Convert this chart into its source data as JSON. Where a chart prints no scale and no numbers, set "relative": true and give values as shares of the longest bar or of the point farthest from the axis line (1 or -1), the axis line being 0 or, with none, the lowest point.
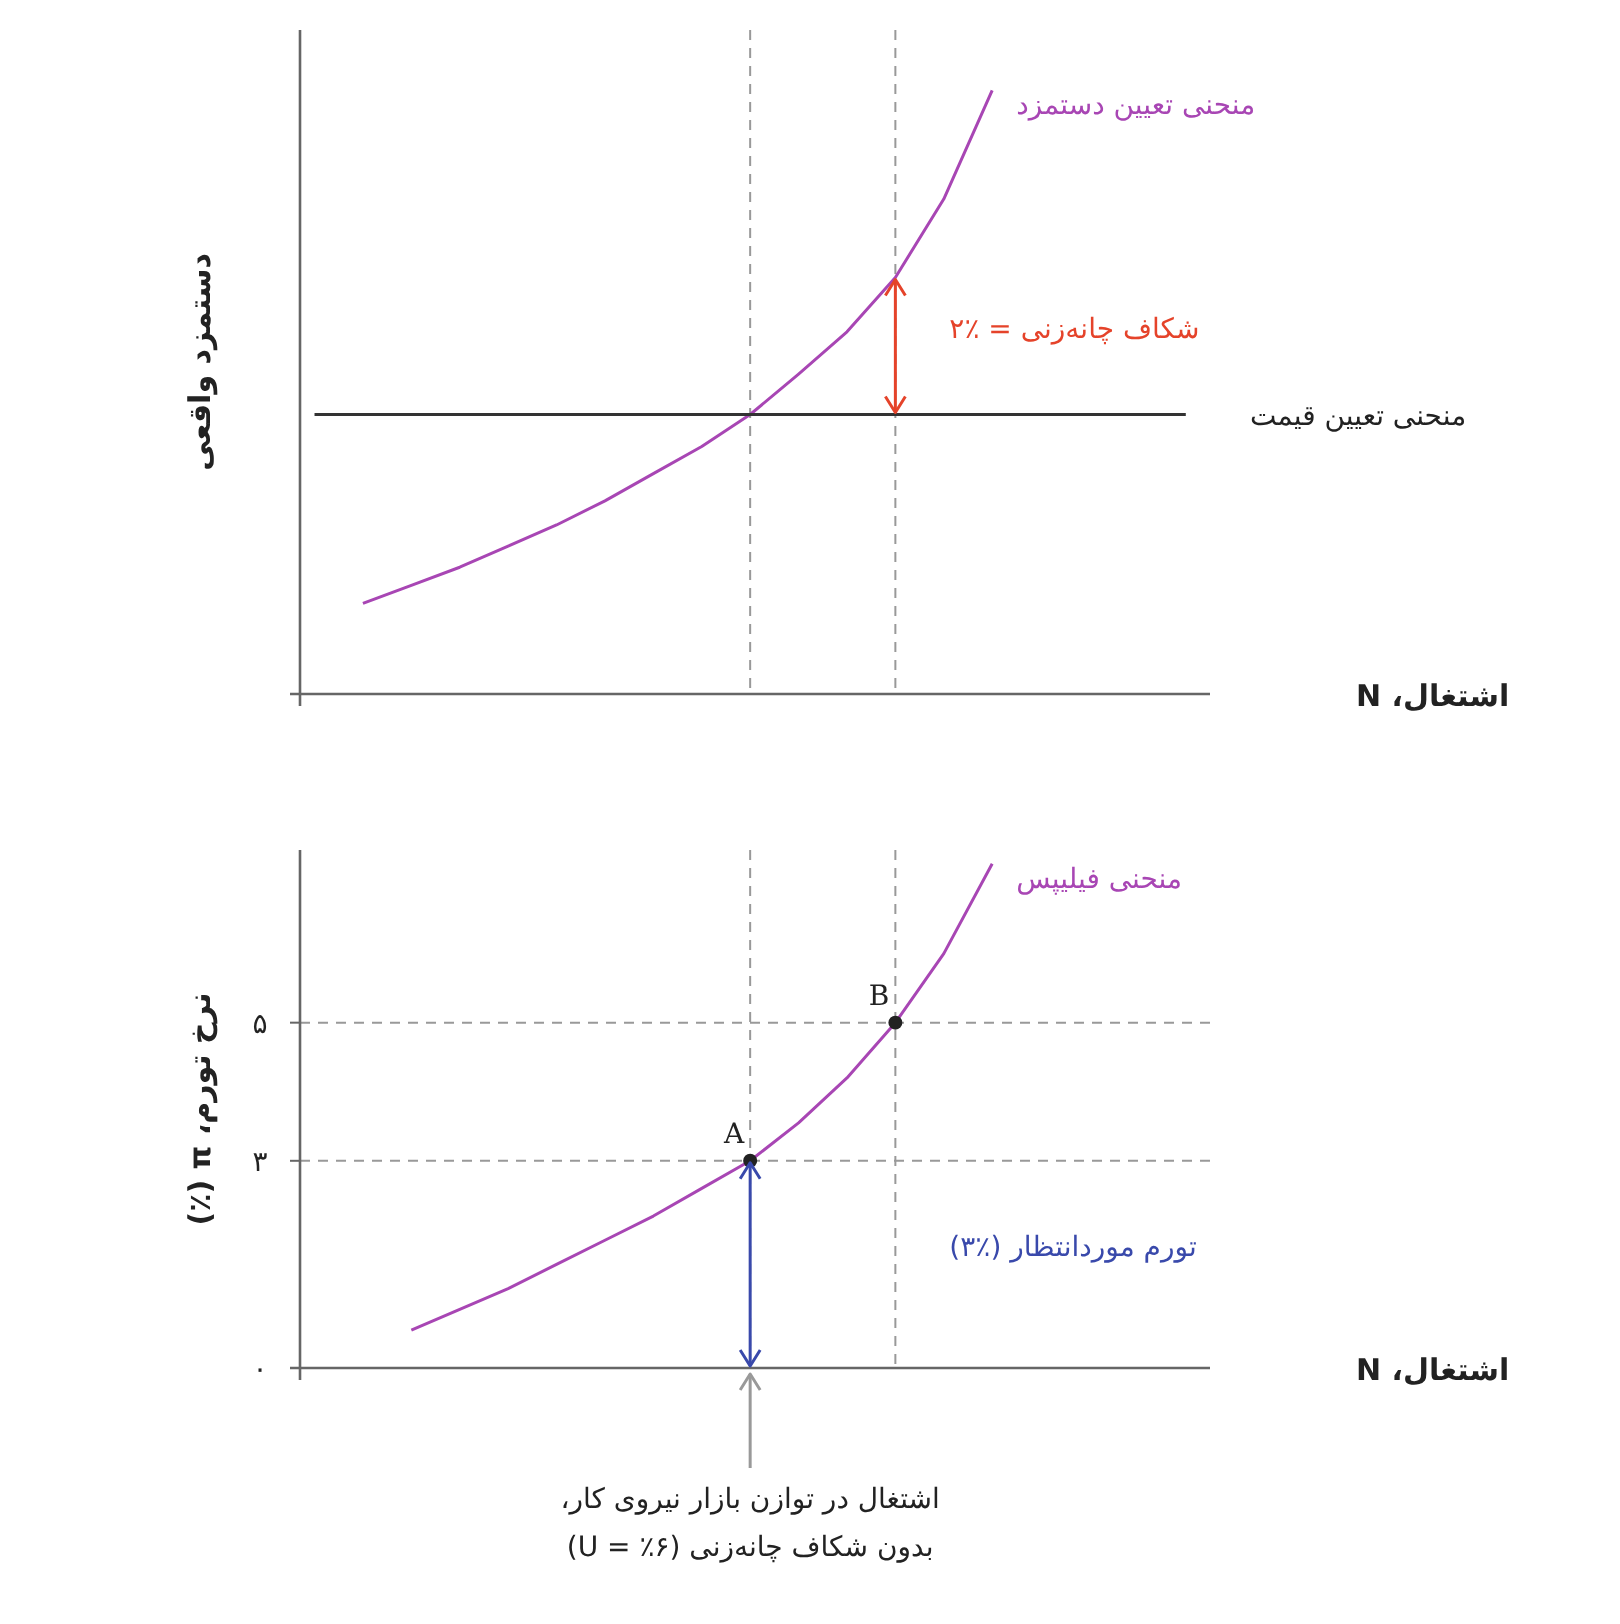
{
  "chart_data": [
    {
      "type": "line",
      "relative": true,
      "ylabel": "دستمزد واقعی",
      "xlabel": "اشتغال، N",
      "grid": false,
      "categories": [
        null,
        null,
        null,
        null,
        null,
        null,
        null,
        null,
        null,
        null,
        null,
        null,
        null,
        null,
        null,
        null,
        null,
        null,
        null
      ],
      "series": [
        {
          "name": "منحنی تعیین دستمزد",
          "color": "#a846b4",
          "values": [
            null,
            0.15,
            0.18,
            0.21,
            0.245,
            0.28,
            0.32,
            0.365,
            0.41,
            0.463,
            0.53,
            0.6,
            0.69,
            0.82,
            1.0,
            null,
            null,
            null,
            null
          ]
        },
        {
          "name": "منحنی تعیین قیمت",
          "color": "#333333",
          "values": [
            0.463,
            0.463,
            0.463,
            0.463,
            0.463,
            0.463,
            0.463,
            0.463,
            0.463,
            0.463,
            0.463,
            0.463,
            0.463,
            0.463,
            0.463,
            0.463,
            0.463,
            0.463,
            0.463
          ]
        }
      ],
      "annotations": [
        "شکاف چانه‌زنی = ٪۲"
      ]
    },
    {
      "type": "line",
      "ylabel": "نرخ تورم، π (٪)",
      "xlabel": "اشتغال، N",
      "grid": false,
      "categories": [
        null,
        null,
        null,
        null,
        null,
        null,
        null,
        null,
        null,
        null,
        null,
        null,
        null,
        null,
        null,
        null,
        null,
        null,
        null
      ],
      "ylim": [
        0,
        7.5
      ],
      "yticks": [
        {
          "value": 0,
          "label": "۰"
        },
        {
          "value": 3,
          "label": "۳"
        },
        {
          "value": 5,
          "label": "۵"
        }
      ],
      "series": [
        {
          "name": "منحنی فیلیپس",
          "color": "#a846b4",
          "values": [
            null,
            null,
            0.55,
            0.85,
            1.15,
            1.5,
            1.85,
            2.2,
            2.6,
            3.0,
            3.55,
            4.2,
            5.0,
            6.0,
            7.3,
            null,
            null,
            null,
            null
          ]
        },
        {
          "type": "scatter",
          "color": "#222222",
          "marker": "circle",
          "values": [
            null,
            null,
            null,
            null,
            null,
            null,
            null,
            null,
            null,
            3,
            null,
            null,
            5,
            null,
            null,
            null,
            null,
            null,
            null
          ],
          "value_labels": [
            null,
            null,
            null,
            null,
            null,
            null,
            null,
            null,
            null,
            "A",
            null,
            null,
            "B",
            null,
            null,
            null,
            null,
            null,
            null
          ]
        }
      ],
      "ref_lines": [
        {
          "axis": "y",
          "value": 3,
          "color": "#999999",
          "line_style": "dashed"
        },
        {
          "axis": "y",
          "value": 5,
          "color": "#999999",
          "line_style": "dashed"
        }
      ],
      "annotations": [
        "تورم موردانتظار (٪۳)",
        "اشتغال در توازن بازار نیروی کار،\nبدون شکاف چانه‌زنی (U = ٪۶)"
      ]
    }
  ]
}
